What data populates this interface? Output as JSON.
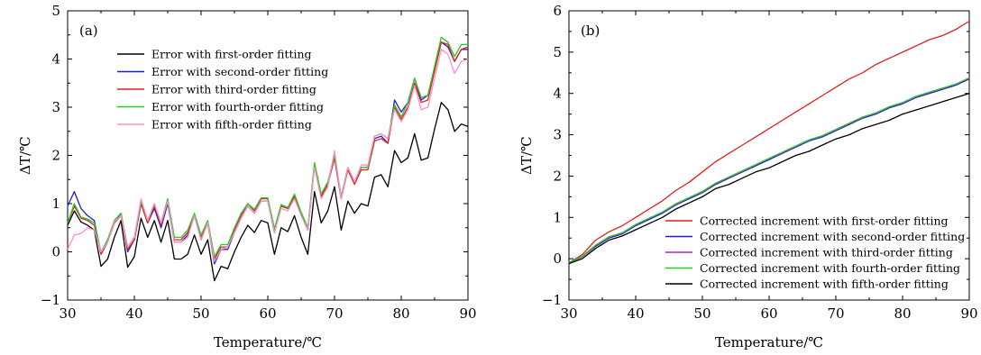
{
  "chart_data": [
    {
      "type": "line",
      "panel_label": "(a)",
      "xlabel": "Temperature/℃",
      "ylabel": "ΔT/℃",
      "xlim": [
        30,
        90
      ],
      "ylim": [
        -1,
        5
      ],
      "xticks": [
        "30",
        "40",
        "50",
        "60",
        "70",
        "80",
        "90"
      ],
      "yticks": [
        "−1",
        "0",
        "1",
        "2",
        "3",
        "4",
        "5"
      ],
      "legend_position": "upper-left",
      "x": [
        30,
        31,
        32,
        33,
        34,
        35,
        36,
        37,
        38,
        39,
        40,
        41,
        42,
        43,
        44,
        45,
        46,
        47,
        48,
        49,
        50,
        51,
        52,
        53,
        54,
        55,
        56,
        57,
        58,
        59,
        60,
        61,
        62,
        63,
        64,
        65,
        66,
        67,
        68,
        69,
        70,
        71,
        72,
        73,
        74,
        75,
        76,
        77,
        78,
        79,
        80,
        81,
        82,
        83,
        84,
        85,
        86,
        87,
        88,
        89,
        90
      ],
      "series": [
        {
          "name": "Error with first-order fitting",
          "color": "#000000",
          "values": [
            0.55,
            0.85,
            0.62,
            0.55,
            0.45,
            -0.3,
            -0.15,
            0.3,
            0.65,
            -0.32,
            -0.1,
            0.7,
            0.3,
            0.65,
            0.2,
            0.65,
            -0.15,
            -0.15,
            -0.05,
            0.35,
            -0.05,
            0.25,
            -0.6,
            -0.3,
            -0.35,
            0.0,
            0.3,
            0.55,
            0.4,
            0.65,
            0.6,
            -0.05,
            0.5,
            0.42,
            0.75,
            0.3,
            -0.05,
            1.25,
            0.6,
            0.85,
            1.35,
            0.45,
            1.05,
            0.8,
            1.0,
            0.95,
            1.55,
            1.6,
            1.35,
            2.1,
            1.85,
            1.95,
            2.45,
            1.9,
            1.95,
            2.55,
            3.1,
            2.95,
            2.5,
            2.65,
            2.6
          ]
        },
        {
          "name": "Error with second-order fitting",
          "color": "#1f1fd0",
          "values": [
            0.95,
            1.25,
            0.9,
            0.75,
            0.65,
            -0.05,
            0.25,
            0.6,
            0.8,
            0.0,
            0.25,
            1.0,
            0.6,
            0.9,
            0.5,
            1.0,
            0.2,
            0.2,
            0.35,
            0.75,
            0.25,
            0.6,
            -0.25,
            0.05,
            0.05,
            0.4,
            0.7,
            0.95,
            0.8,
            1.05,
            1.05,
            0.4,
            0.95,
            0.9,
            1.15,
            0.8,
            0.45,
            1.8,
            1.15,
            1.4,
            1.95,
            1.1,
            1.75,
            1.45,
            1.75,
            1.75,
            2.35,
            2.4,
            2.25,
            3.15,
            2.9,
            3.1,
            3.6,
            3.15,
            3.25,
            3.8,
            4.35,
            4.25,
            3.95,
            4.2,
            4.2
          ]
        },
        {
          "name": "Error with third-order fitting",
          "color": "#e02020",
          "values": [
            0.6,
            0.95,
            0.7,
            0.65,
            0.55,
            -0.05,
            0.2,
            0.6,
            0.75,
            0.05,
            0.25,
            1.0,
            0.6,
            0.95,
            0.55,
            1.05,
            0.25,
            0.25,
            0.4,
            0.75,
            0.3,
            0.6,
            -0.15,
            0.1,
            0.1,
            0.45,
            0.75,
            1.0,
            0.85,
            1.1,
            1.1,
            0.45,
            0.95,
            0.9,
            1.15,
            0.8,
            0.45,
            1.8,
            1.15,
            1.4,
            1.95,
            1.1,
            1.7,
            1.4,
            1.7,
            1.7,
            2.3,
            2.35,
            2.25,
            3.0,
            2.75,
            3.0,
            3.5,
            3.1,
            3.15,
            3.75,
            4.35,
            4.3,
            3.95,
            4.2,
            4.25
          ]
        },
        {
          "name": "Error with fourth-order fitting",
          "color": "#22cc22",
          "values": [
            0.6,
            1.0,
            0.72,
            0.68,
            0.6,
            0.0,
            0.25,
            0.65,
            0.8,
            0.1,
            0.3,
            1.05,
            0.65,
            1.0,
            0.6,
            1.1,
            0.3,
            0.3,
            0.45,
            0.8,
            0.35,
            0.65,
            -0.1,
            0.15,
            0.15,
            0.5,
            0.8,
            1.0,
            0.88,
            1.12,
            1.12,
            0.48,
            0.98,
            0.92,
            1.2,
            0.82,
            0.5,
            1.85,
            1.2,
            1.45,
            2.0,
            1.15,
            1.75,
            1.45,
            1.75,
            1.75,
            2.4,
            2.45,
            2.35,
            3.05,
            2.8,
            3.1,
            3.6,
            3.2,
            3.25,
            3.85,
            4.45,
            4.35,
            4.05,
            4.3,
            4.3
          ]
        },
        {
          "name": "Error with fifth-order fitting",
          "color": "#ff8ec8",
          "values": [
            0.05,
            0.35,
            0.38,
            0.5,
            0.45,
            0.0,
            0.2,
            0.62,
            0.75,
            0.1,
            0.3,
            1.1,
            0.65,
            1.0,
            0.6,
            1.05,
            0.2,
            0.2,
            0.3,
            0.75,
            0.25,
            0.6,
            -0.2,
            0.05,
            0.1,
            0.4,
            0.7,
            0.95,
            0.8,
            1.05,
            1.05,
            0.4,
            0.9,
            0.85,
            1.1,
            0.75,
            0.45,
            1.75,
            1.1,
            1.35,
            2.1,
            1.1,
            1.75,
            1.45,
            1.8,
            1.8,
            2.4,
            2.45,
            2.35,
            2.95,
            2.7,
            2.95,
            3.45,
            2.95,
            3.0,
            3.6,
            4.2,
            4.1,
            3.7,
            3.95,
            4.0
          ]
        }
      ]
    },
    {
      "type": "line",
      "panel_label": "(b)",
      "xlabel": "Temperature/℃",
      "ylabel": "ΔT/℃",
      "xlim": [
        30,
        90
      ],
      "ylim": [
        -1,
        6
      ],
      "xticks": [
        "30",
        "40",
        "50",
        "60",
        "70",
        "80",
        "90"
      ],
      "yticks": [
        "−1",
        "0",
        "1",
        "2",
        "3",
        "4",
        "5",
        "6"
      ],
      "legend_position": "lower-right",
      "x": [
        30,
        32,
        34,
        36,
        38,
        40,
        42,
        44,
        46,
        48,
        50,
        52,
        54,
        56,
        58,
        60,
        62,
        64,
        66,
        68,
        70,
        72,
        74,
        76,
        78,
        80,
        82,
        84,
        86,
        88,
        90
      ],
      "series": [
        {
          "name": "Corrected increment with first-order fitting",
          "color": "#e02020",
          "values": [
            -0.1,
            0.1,
            0.45,
            0.65,
            0.8,
            1.0,
            1.2,
            1.4,
            1.65,
            1.85,
            2.1,
            2.35,
            2.55,
            2.75,
            2.95,
            3.15,
            3.35,
            3.55,
            3.75,
            3.95,
            4.15,
            4.35,
            4.5,
            4.7,
            4.85,
            5.0,
            5.15,
            5.3,
            5.4,
            5.55,
            5.75
          ]
        },
        {
          "name": "Corrected increment with second-order fitting",
          "color": "#1f1fd0",
          "values": [
            -0.1,
            0.05,
            0.3,
            0.5,
            0.6,
            0.8,
            0.95,
            1.1,
            1.3,
            1.45,
            1.6,
            1.8,
            1.95,
            2.1,
            2.25,
            2.4,
            2.55,
            2.7,
            2.85,
            2.95,
            3.1,
            3.25,
            3.4,
            3.5,
            3.65,
            3.75,
            3.9,
            4.0,
            4.1,
            4.2,
            4.35
          ]
        },
        {
          "name": "Corrected increment with third-order fitting",
          "color": "#b020c0",
          "values": [
            -0.1,
            0.05,
            0.32,
            0.52,
            0.62,
            0.82,
            0.97,
            1.12,
            1.32,
            1.47,
            1.62,
            1.82,
            1.97,
            2.12,
            2.27,
            2.42,
            2.57,
            2.72,
            2.87,
            2.97,
            3.12,
            3.27,
            3.42,
            3.52,
            3.67,
            3.77,
            3.92,
            4.02,
            4.12,
            4.22,
            4.37
          ]
        },
        {
          "name": "Corrected increment with fourth-order fitting",
          "color": "#22cc22",
          "values": [
            -0.1,
            0.06,
            0.33,
            0.53,
            0.63,
            0.83,
            0.98,
            1.13,
            1.33,
            1.48,
            1.63,
            1.83,
            1.98,
            2.13,
            2.28,
            2.43,
            2.58,
            2.73,
            2.88,
            2.98,
            3.13,
            3.28,
            3.43,
            3.53,
            3.68,
            3.78,
            3.93,
            4.03,
            4.13,
            4.23,
            4.38
          ]
        },
        {
          "name": "Corrected increment with fifth-order fitting",
          "color": "#000000",
          "values": [
            -0.12,
            0.0,
            0.25,
            0.45,
            0.55,
            0.7,
            0.85,
            1.0,
            1.2,
            1.35,
            1.5,
            1.7,
            1.8,
            1.95,
            2.1,
            2.2,
            2.35,
            2.5,
            2.6,
            2.75,
            2.9,
            3.0,
            3.15,
            3.25,
            3.35,
            3.5,
            3.6,
            3.7,
            3.8,
            3.9,
            4.0
          ]
        }
      ]
    }
  ]
}
